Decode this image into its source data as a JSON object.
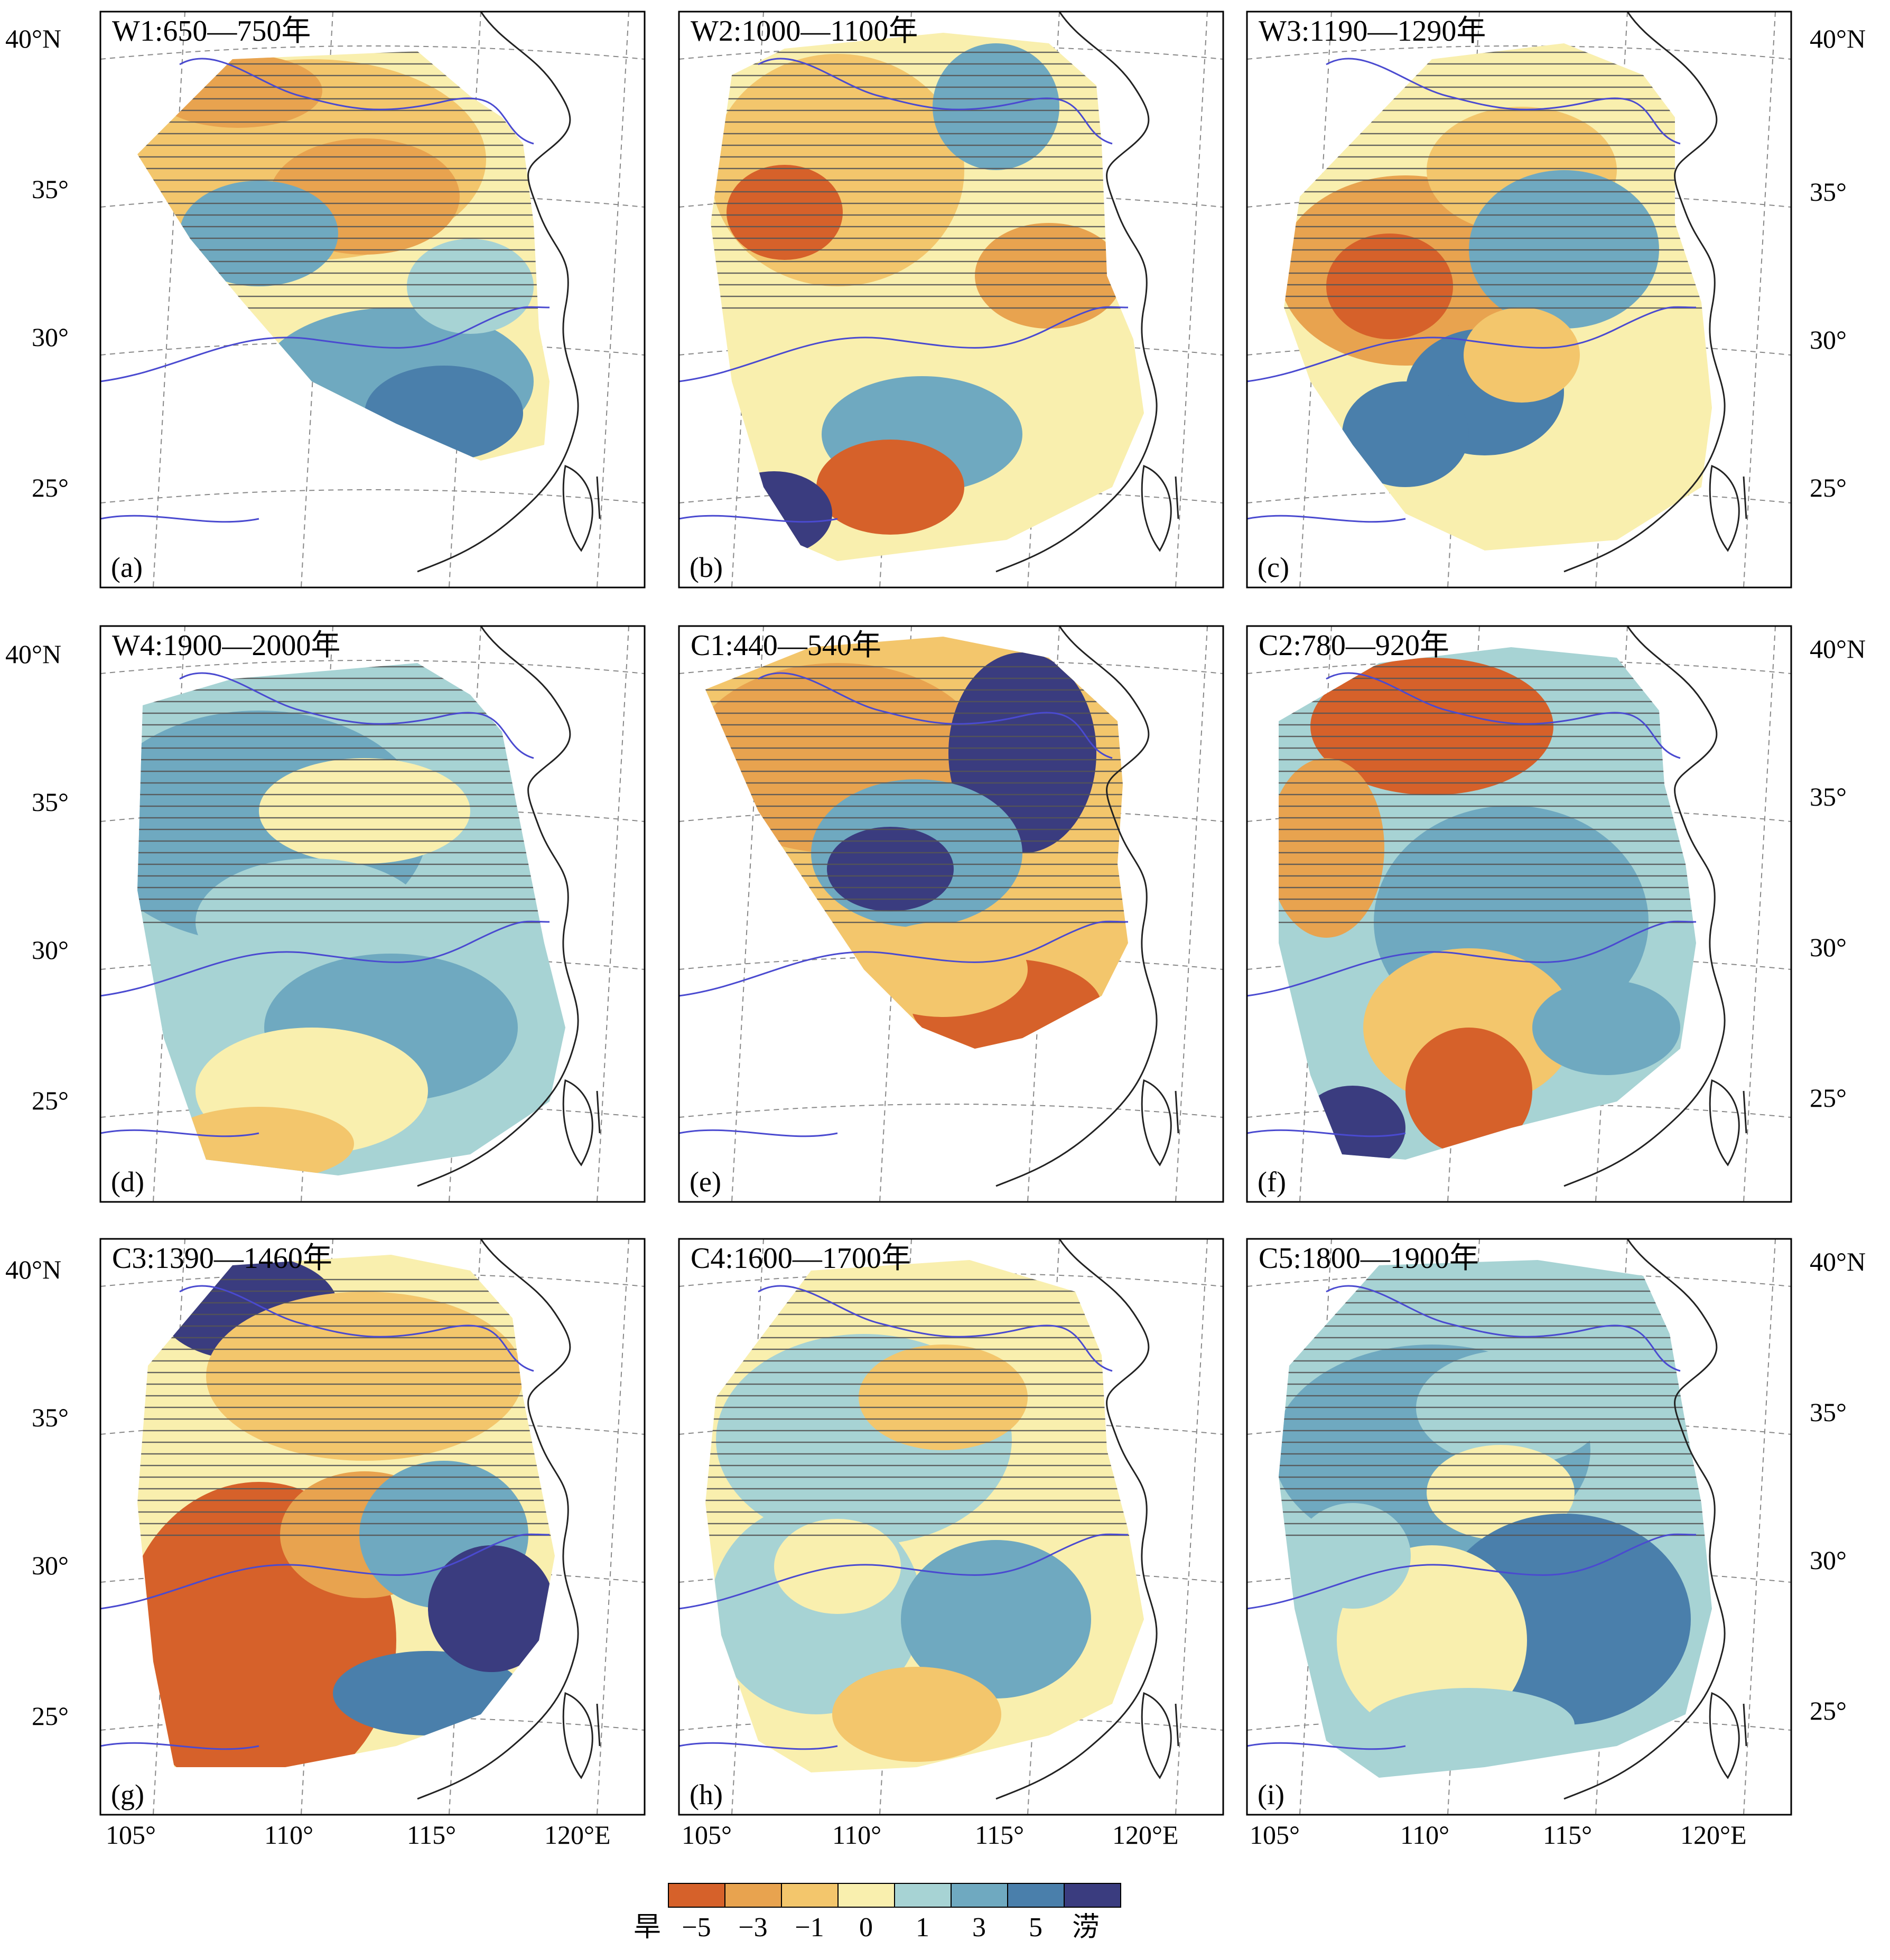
{
  "colorbar": {
    "colors": [
      "#d6612a",
      "#e8a34f",
      "#f3c66c",
      "#f9efae",
      "#a7d3d4",
      "#6fa9c0",
      "#4a7fab",
      "#3a3c7f"
    ],
    "tick_labels": [
      "旱",
      "−5",
      "−3",
      "−1",
      "0",
      "1",
      "3",
      "5",
      "涝"
    ]
  },
  "axes": {
    "lat_labels": [
      "40°N",
      "35°",
      "30°",
      "25°"
    ],
    "lon_labels": [
      "105°",
      "110°",
      "115°",
      "120°E"
    ]
  },
  "colors": {
    "coast": "#222222",
    "river": "#4a4ad0",
    "grid": "#888888",
    "hatch": "#555555",
    "frame": "#000000"
  },
  "panels": [
    {
      "title": "W1:650—750年",
      "label": "(a)"
    },
    {
      "title": "W2:1000—1100年",
      "label": "(b)"
    },
    {
      "title": "W3:1190—1290年",
      "label": "(c)"
    },
    {
      "title": "W4:1900—2000年",
      "label": "(d)"
    },
    {
      "title": "C1:440—540年",
      "label": "(e)"
    },
    {
      "title": "C2:780—920年",
      "label": "(f)"
    },
    {
      "title": "C3:1390—1460年",
      "label": "(g)"
    },
    {
      "title": "C4:1600—1700年",
      "label": "(h)"
    },
    {
      "title": "C5:1800—1900年",
      "label": "(i)"
    }
  ]
}
